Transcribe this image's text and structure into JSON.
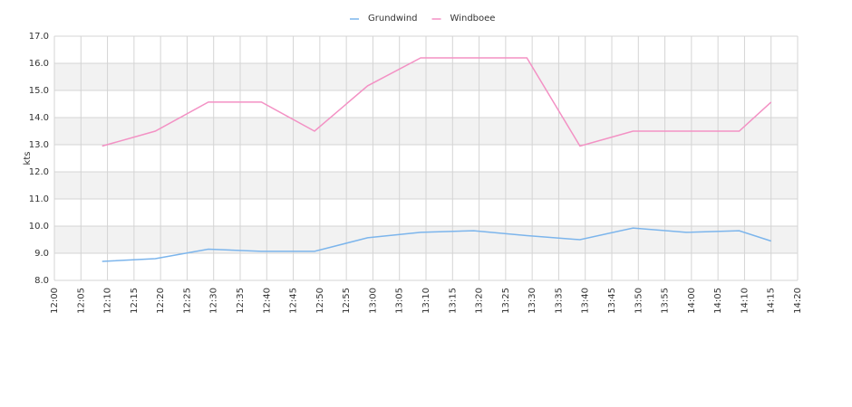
{
  "chart_data": {
    "type": "line",
    "y_label": "kts",
    "x": [
      "12:09",
      "12:19",
      "12:29",
      "12:39",
      "12:49",
      "12:59",
      "13:09",
      "13:19",
      "13:29",
      "13:39",
      "13:49",
      "13:59",
      "14:09",
      "14:15"
    ],
    "series": [
      {
        "name": "Grundwind",
        "color": "#7cb5ec",
        "values": [
          8.7,
          8.8,
          9.15,
          9.07,
          9.07,
          9.57,
          9.77,
          9.83,
          9.65,
          9.5,
          9.93,
          9.77,
          9.83,
          9.45
        ]
      },
      {
        "name": "Windboee",
        "color": "#f391c4",
        "values": [
          12.95,
          13.5,
          14.57,
          14.57,
          13.5,
          15.17,
          16.2,
          16.2,
          16.2,
          12.95,
          13.5,
          13.5,
          13.5,
          14.57
        ]
      }
    ],
    "xlim": [
      "12:00",
      "14:20"
    ],
    "xticks": [
      "12:00",
      "12:05",
      "12:10",
      "12:15",
      "12:20",
      "12:25",
      "12:30",
      "12:35",
      "12:40",
      "12:45",
      "12:50",
      "12:55",
      "13:00",
      "13:05",
      "13:10",
      "13:15",
      "13:20",
      "13:25",
      "13:30",
      "13:35",
      "13:40",
      "13:45",
      "13:50",
      "13:55",
      "14:00",
      "14:05",
      "14:10",
      "14:15",
      "14:20"
    ],
    "ylim": [
      8,
      17
    ],
    "yticks": [
      {
        "value": 8,
        "label": "8.0"
      },
      {
        "value": 9,
        "label": "9.0"
      },
      {
        "value": 10,
        "label": "10.0"
      },
      {
        "value": 11,
        "label": "11.0"
      },
      {
        "value": 12,
        "label": "12.0"
      },
      {
        "value": 13,
        "label": "13.0"
      },
      {
        "value": 14,
        "label": "14.0"
      },
      {
        "value": 15,
        "label": "15.0"
      },
      {
        "value": 16,
        "label": "16.0"
      },
      {
        "value": 17,
        "label": "17.0"
      }
    ],
    "grid": true,
    "legend": "top"
  }
}
